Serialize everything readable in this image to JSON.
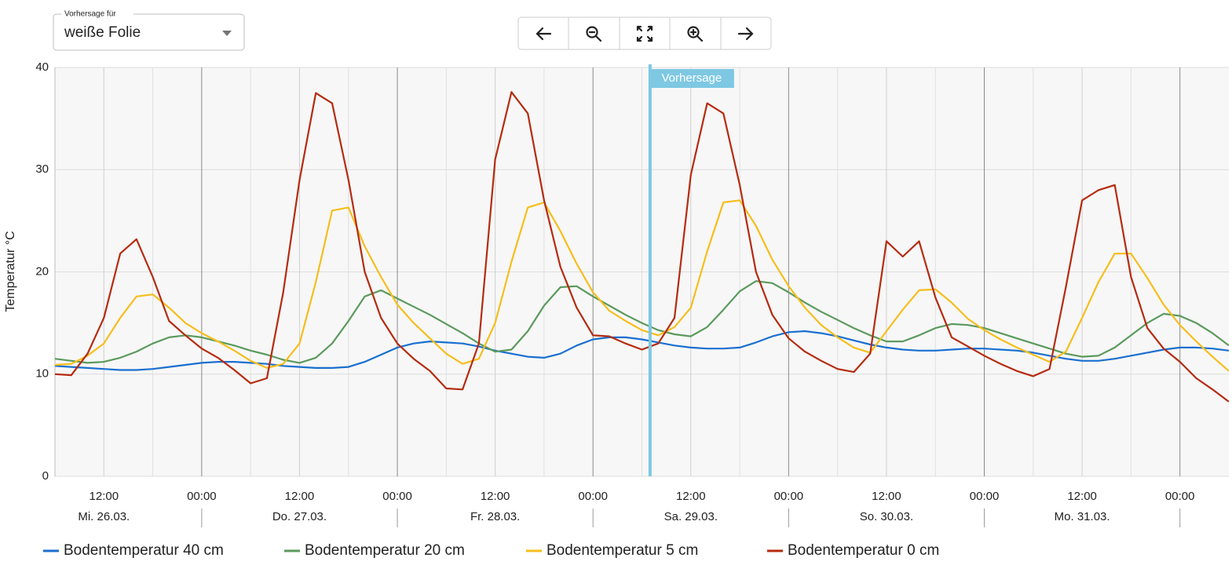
{
  "controls": {
    "select_label": "Vorhersage für",
    "select_value": "weiße Folie"
  },
  "chart_data": {
    "type": "line",
    "y_label": "Temperatur °C",
    "ylim": [
      0,
      40
    ],
    "yticks": [
      0,
      10,
      20,
      30,
      40
    ],
    "grid": true,
    "xlim": [
      "26.03. 06:00",
      "01.04. 06:00"
    ],
    "xticks": [
      {
        "value": "26.03. 12:00",
        "label": "12:00"
      },
      {
        "value": "27.03. 00:00",
        "label": "00:00"
      },
      {
        "value": "27.03. 12:00",
        "label": "12:00"
      },
      {
        "value": "28.03. 00:00",
        "label": "00:00"
      },
      {
        "value": "28.03. 12:00",
        "label": "12:00"
      },
      {
        "value": "29.03. 00:00",
        "label": "00:00"
      },
      {
        "value": "29.03. 12:00",
        "label": "12:00"
      },
      {
        "value": "30.03. 00:00",
        "label": "00:00"
      },
      {
        "value": "30.03. 12:00",
        "label": "12:00"
      },
      {
        "value": "31.03. 00:00",
        "label": "00:00"
      },
      {
        "value": "31.03. 12:00",
        "label": "12:00"
      },
      {
        "value": "01.04. 00:00",
        "label": "00:00"
      }
    ],
    "xminorticks": [
      "26.03. 18:00",
      "27.03. 06:00",
      "27.03. 18:00",
      "28.03. 06:00",
      "28.03. 18:00",
      "29.03. 06:00",
      "29.03. 18:00",
      "30.03. 06:00",
      "30.03. 18:00",
      "31.03. 06:00",
      "31.03. 18:00"
    ],
    "day_labels": [
      {
        "value": "26.03. 12:00",
        "label": "Mi. 26.03."
      },
      {
        "value": "27.03. 12:00",
        "label": "Do. 27.03."
      },
      {
        "value": "28.03. 12:00",
        "label": "Fr. 28.03."
      },
      {
        "value": "29.03. 12:00",
        "label": "Sa. 29.03."
      },
      {
        "value": "30.03. 12:00",
        "label": "So. 30.03."
      },
      {
        "value": "31.03. 12:00",
        "label": "Mo. 31.03."
      }
    ],
    "annotation": "Vorhersage",
    "forecast_start": "29.03. 07:00",
    "x": [
      "26.03. 06:00",
      "26.03. 08:00",
      "26.03. 10:00",
      "26.03. 12:00",
      "26.03. 14:00",
      "26.03. 16:00",
      "26.03. 18:00",
      "26.03. 20:00",
      "26.03. 22:00",
      "27.03. 00:00",
      "27.03. 02:00",
      "27.03. 04:00",
      "27.03. 06:00",
      "27.03. 08:00",
      "27.03. 10:00",
      "27.03. 12:00",
      "27.03. 14:00",
      "27.03. 16:00",
      "27.03. 18:00",
      "27.03. 20:00",
      "27.03. 22:00",
      "28.03. 00:00",
      "28.03. 02:00",
      "28.03. 04:00",
      "28.03. 06:00",
      "28.03. 08:00",
      "28.03. 10:00",
      "28.03. 12:00",
      "28.03. 14:00",
      "28.03. 16:00",
      "28.03. 18:00",
      "28.03. 20:00",
      "28.03. 22:00",
      "29.03. 00:00",
      "29.03. 02:00",
      "29.03. 04:00",
      "29.03. 06:00",
      "29.03. 08:00",
      "29.03. 10:00",
      "29.03. 12:00",
      "29.03. 14:00",
      "29.03. 16:00",
      "29.03. 18:00",
      "29.03. 20:00",
      "29.03. 22:00",
      "30.03. 00:00",
      "30.03. 02:00",
      "30.03. 04:00",
      "30.03. 06:00",
      "30.03. 08:00",
      "30.03. 10:00",
      "30.03. 12:00",
      "30.03. 14:00",
      "30.03. 16:00",
      "30.03. 18:00",
      "30.03. 20:00",
      "30.03. 22:00",
      "31.03. 00:00",
      "31.03. 02:00",
      "31.03. 04:00",
      "31.03. 06:00",
      "31.03. 08:00",
      "31.03. 10:00",
      "31.03. 12:00",
      "31.03. 14:00",
      "31.03. 16:00",
      "31.03. 18:00",
      "31.03. 20:00",
      "31.03. 22:00",
      "01.04. 00:00",
      "01.04. 02:00",
      "01.04. 04:00",
      "01.04. 06:00"
    ],
    "series": [
      {
        "name": "Bodentemperatur 40 cm",
        "color": "#1a6fd0",
        "values": [
          10.8,
          10.7,
          10.6,
          10.5,
          10.4,
          10.4,
          10.5,
          10.7,
          10.9,
          11.1,
          11.2,
          11.2,
          11.1,
          11.0,
          10.8,
          10.7,
          10.6,
          10.6,
          10.7,
          11.2,
          11.9,
          12.6,
          13.0,
          13.2,
          13.1,
          13.0,
          12.7,
          12.3,
          12.0,
          11.7,
          11.6,
          12.0,
          12.8,
          13.4,
          13.6,
          13.6,
          13.4,
          13.1,
          12.8,
          12.6,
          12.5,
          12.5,
          12.6,
          13.1,
          13.7,
          14.1,
          14.2,
          14.0,
          13.7,
          13.3,
          12.9,
          12.6,
          12.4,
          12.3,
          12.3,
          12.4,
          12.5,
          12.5,
          12.4,
          12.3,
          12.1,
          11.8,
          11.5,
          11.3,
          11.3,
          11.5,
          11.8,
          12.1,
          12.4,
          12.6,
          12.6,
          12.5,
          12.3
        ]
      },
      {
        "name": "Bodentemperatur 20 cm",
        "color": "#5b9a5d",
        "values": [
          11.5,
          11.3,
          11.1,
          11.2,
          11.6,
          12.2,
          13.0,
          13.6,
          13.8,
          13.6,
          13.2,
          12.8,
          12.3,
          11.9,
          11.4,
          11.1,
          11.6,
          13.0,
          15.2,
          17.6,
          18.2,
          17.4,
          16.6,
          15.8,
          14.9,
          14.0,
          13.0,
          12.2,
          12.4,
          14.2,
          16.7,
          18.5,
          18.6,
          17.6,
          16.7,
          15.8,
          15.0,
          14.3,
          13.9,
          13.7,
          14.6,
          16.3,
          18.1,
          19.1,
          18.9,
          18.0,
          17.0,
          16.1,
          15.3,
          14.5,
          13.8,
          13.2,
          13.2,
          13.8,
          14.5,
          14.9,
          14.8,
          14.5,
          14.0,
          13.5,
          13.0,
          12.5,
          12.0,
          11.7,
          11.8,
          12.6,
          13.8,
          15.0,
          15.9,
          15.7,
          15.0,
          14.0,
          12.8
        ]
      },
      {
        "name": "Bodentemperatur 5 cm",
        "color": "#f6be1c",
        "values": [
          10.9,
          11.0,
          11.8,
          13.0,
          15.5,
          17.6,
          17.8,
          16.5,
          15.0,
          14.0,
          13.2,
          12.3,
          11.3,
          10.6,
          11.0,
          13.0,
          19.0,
          26.0,
          26.3,
          22.5,
          19.5,
          16.8,
          15.0,
          13.5,
          12.0,
          11.0,
          11.5,
          15.0,
          21.0,
          26.3,
          26.8,
          24.0,
          20.8,
          18.0,
          16.2,
          15.2,
          14.3,
          13.8,
          14.6,
          16.5,
          22.0,
          26.8,
          27.0,
          24.5,
          21.2,
          18.6,
          16.5,
          14.8,
          13.6,
          12.6,
          12.1,
          14.2,
          16.3,
          18.2,
          18.3,
          17.0,
          15.4,
          14.3,
          13.4,
          12.6,
          11.9,
          11.2,
          12.2,
          15.5,
          19.0,
          21.8,
          21.8,
          19.4,
          16.8,
          14.8,
          13.2,
          11.7,
          10.3
        ]
      },
      {
        "name": "Bodentemperatur 0 cm",
        "color": "#b52b0f",
        "values": [
          10.0,
          9.9,
          12.0,
          15.5,
          21.8,
          23.2,
          19.5,
          15.2,
          13.8,
          12.5,
          11.6,
          10.4,
          9.1,
          9.6,
          18.0,
          29.0,
          37.5,
          36.5,
          29.0,
          20.0,
          15.5,
          13.0,
          11.5,
          10.3,
          8.6,
          8.5,
          13.0,
          31.0,
          37.6,
          35.5,
          27.0,
          20.5,
          16.5,
          13.8,
          13.7,
          13.0,
          12.4,
          13.0,
          15.5,
          29.5,
          36.5,
          35.5,
          28.5,
          20.0,
          15.8,
          13.5,
          12.2,
          11.3,
          10.5,
          10.2,
          12.0,
          23.0,
          21.5,
          23.0,
          17.5,
          13.6,
          12.7,
          11.8,
          11.0,
          10.3,
          9.8,
          10.5,
          18.5,
          27.0,
          28.0,
          28.5,
          19.5,
          14.5,
          12.5,
          11.2,
          9.6,
          8.5,
          7.3
        ]
      }
    ]
  }
}
